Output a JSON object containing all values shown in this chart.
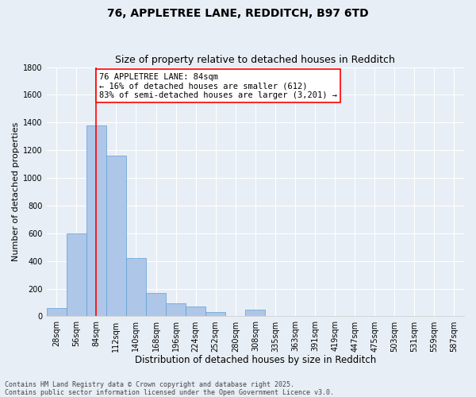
{
  "title1": "76, APPLETREE LANE, REDDITCH, B97 6TD",
  "title2": "Size of property relative to detached houses in Redditch",
  "xlabel": "Distribution of detached houses by size in Redditch",
  "ylabel": "Number of detached properties",
  "categories": [
    "28sqm",
    "56sqm",
    "84sqm",
    "112sqm",
    "140sqm",
    "168sqm",
    "196sqm",
    "224sqm",
    "252sqm",
    "280sqm",
    "308sqm",
    "335sqm",
    "363sqm",
    "391sqm",
    "419sqm",
    "447sqm",
    "475sqm",
    "503sqm",
    "531sqm",
    "559sqm",
    "587sqm"
  ],
  "values": [
    60,
    600,
    1380,
    1160,
    420,
    170,
    95,
    70,
    30,
    0,
    50,
    0,
    0,
    0,
    0,
    0,
    0,
    0,
    0,
    0,
    0
  ],
  "bar_color": "#aec6e8",
  "bar_edge_color": "#5f9fd4",
  "vline_x_index": 2,
  "vline_color": "red",
  "annotation_text": "76 APPLETREE LANE: 84sqm\n← 16% of detached houses are smaller (612)\n83% of semi-detached houses are larger (3,201) →",
  "annotation_box_color": "white",
  "annotation_box_edge_color": "red",
  "ylim": [
    0,
    1800
  ],
  "yticks": [
    0,
    200,
    400,
    600,
    800,
    1000,
    1200,
    1400,
    1600,
    1800
  ],
  "bg_color": "#e8eef5",
  "plot_bg_color": "#e8eef5",
  "footer_text": "Contains HM Land Registry data © Crown copyright and database right 2025.\nContains public sector information licensed under the Open Government Licence v3.0.",
  "title1_fontsize": 10,
  "title2_fontsize": 9,
  "xlabel_fontsize": 8.5,
  "ylabel_fontsize": 8,
  "annotation_fontsize": 7.5,
  "footer_fontsize": 6,
  "tick_fontsize": 7
}
